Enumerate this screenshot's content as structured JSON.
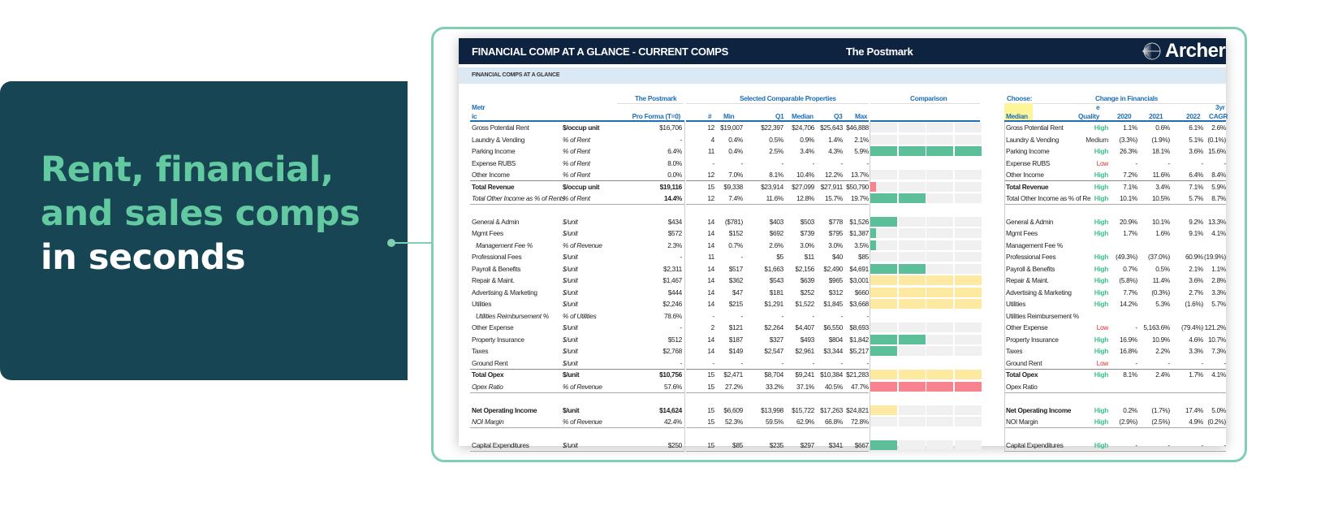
{
  "promo": {
    "line1": "Rent, financial,",
    "line2": "and sales comps",
    "line3": "in seconds"
  },
  "sheet": {
    "title": "FINANCIAL COMP AT A GLANCE - CURRENT COMPS",
    "property": "The Postmark",
    "logo": "Archer",
    "band": "FINANCIAL COMPS AT A GLANCE"
  },
  "colors": {
    "header_bg": "#0d2340",
    "accent": "#1f6fb5",
    "green": "#5bbf9a",
    "yellow": "#fde9a0",
    "red": "#f7838f",
    "quality_high": "#3fbf8c",
    "quality_low": "#e03030",
    "quality_medium": "#333333"
  },
  "left_headers": {
    "group_postmark": "The Postmark",
    "group_comps": "Selected Comparable Properties",
    "group_comparison": "Comparison",
    "metric_a": "Metr",
    "metric_b": "ic",
    "proforma": "Pro Forma (T=0)",
    "n": "#",
    "min": "Min",
    "q1": "Q1",
    "median": "Median",
    "q3": "Q3",
    "max": "Max"
  },
  "right_headers": {
    "choose": "Choose:",
    "group": "Change in Financials",
    "selected": "Median",
    "quality_a": "e",
    "quality_b": "Quality",
    "y2020": "2020",
    "y2021": "2021",
    "y2022": "2022",
    "cagr_a": "3yr",
    "cagr_b": "CAGR"
  },
  "sections": [
    [
      {
        "label": "Gross Potential Rent",
        "unit": "$/occup unit",
        "unit_bold": true,
        "pf": "$16,706",
        "n": "12",
        "min": "$19,007",
        "q1": "$22,397",
        "med": "$24,706",
        "q3": "$25,643",
        "max": "$46,888",
        "bar": {
          "color": "none",
          "level": 0
        },
        "rl": "Gross Potential Rent",
        "q": "High",
        "c20": "1.1%",
        "c21": "0.6%",
        "c22": "6.1%",
        "cagr": "2.6%"
      },
      {
        "label": "Laundry & Vending",
        "unit": "% of Rent",
        "pf": "-",
        "n": "4",
        "min": "0.4%",
        "q1": "0.5%",
        "med": "0.9%",
        "q3": "1.4%",
        "max": "2.1%",
        "bar": {
          "color": "none",
          "level": 0
        },
        "rl": "Laundry & Vending",
        "q": "Medium",
        "c20": "(3.3%)",
        "c21": "(1.9%)",
        "c22": "5.1%",
        "cagr": "(0.1%)"
      },
      {
        "label": "Parking Income",
        "unit": "% of Rent",
        "pf": "6.4%",
        "n": "11",
        "min": "0.4%",
        "q1": "2.5%",
        "med": "3.4%",
        "q3": "4.3%",
        "max": "5.9%",
        "bar": {
          "color": "green",
          "level": 4
        },
        "rl": "Parking Income",
        "q": "High",
        "c20": "26.3%",
        "c21": "18.1%",
        "c22": "3.6%",
        "cagr": "15.6%"
      },
      {
        "label": "Expense RUBS",
        "unit": "% of Rent",
        "pf": "8.0%",
        "n": "-",
        "min": "-",
        "q1": "-",
        "med": "-",
        "q3": "-",
        "max": "-",
        "bar": null,
        "rl": "Expense RUBS",
        "q": "Low",
        "c20": "-",
        "c21": "-",
        "c22": "-",
        "cagr": "-"
      },
      {
        "label": "Other Income",
        "unit": "% of Rent",
        "pf": "0.0%",
        "n": "12",
        "min": "7.0%",
        "q1": "8.1%",
        "med": "10.4%",
        "q3": "12.2%",
        "max": "13.7%",
        "bar": {
          "color": "none",
          "level": 0
        },
        "rl": "Other Income",
        "q": "High",
        "c20": "7.2%",
        "c21": "11.6%",
        "c22": "6.4%",
        "cagr": "8.4%"
      },
      {
        "label": "Total Revenue",
        "unit": "$/occup unit",
        "style": "bold",
        "unit_bold": true,
        "top_line": true,
        "pf": "$19,116",
        "n": "15",
        "min": "$9,338",
        "q1": "$23,914",
        "med": "$27,099",
        "q3": "$27,911",
        "max": "$50,790",
        "bar": {
          "color": "red",
          "level": 0.2
        },
        "rl": "Total Revenue",
        "q": "High",
        "c20": "7.1%",
        "c21": "3.4%",
        "c22": "7.1%",
        "cagr": "5.9%"
      },
      {
        "label": "Total Other Income as % of Rents",
        "unit": "% of Rent",
        "style": "italic",
        "pf_bold": true,
        "pf": "14.4%",
        "n": "12",
        "min": "7.4%",
        "q1": "11.6%",
        "med": "12.8%",
        "q3": "15.7%",
        "max": "19.7%",
        "bar": {
          "color": "green",
          "level": 2
        },
        "rl": "Total Other Income as % of Re",
        "q": "High",
        "c20": "10.1%",
        "c21": "10.5%",
        "c22": "5.7%",
        "cagr": "8.7%"
      }
    ],
    [
      {
        "label": "General & Admin",
        "unit": "$/unit",
        "pf": "$434",
        "n": "14",
        "min": "($781)",
        "q1": "$403",
        "med": "$503",
        "q3": "$778",
        "max": "$1,526",
        "bar": {
          "color": "green",
          "level": 1
        },
        "rl": "General & Admin",
        "q": "High",
        "c20": "20.9%",
        "c21": "10.1%",
        "c22": "9.2%",
        "cagr": "13.3%"
      },
      {
        "label": "Mgmt Fees",
        "unit": "$/unit",
        "pf": "$572",
        "n": "14",
        "min": "$152",
        "q1": "$692",
        "med": "$739",
        "q3": "$795",
        "max": "$1,387",
        "bar": {
          "color": "green",
          "level": 0.2
        },
        "rl": "Mgmt Fees",
        "q": "High",
        "c20": "1.7%",
        "c21": "1.6%",
        "c22": "9.1%",
        "cagr": "4.1%"
      },
      {
        "label": "Management Fee %",
        "unit": "% of Revenue",
        "style": "italic-indent",
        "pf": "2.3%",
        "n": "14",
        "min": "0.7%",
        "q1": "2.6%",
        "med": "3.0%",
        "q3": "3.0%",
        "max": "3.5%",
        "bar": {
          "color": "green",
          "level": 0.2
        },
        "rl": "Management Fee %",
        "q": "",
        "c20": "",
        "c21": "",
        "c22": "",
        "cagr": ""
      },
      {
        "label": "Professional Fees",
        "unit": "$/unit",
        "pf": "-",
        "n": "11",
        "min": "-",
        "q1": "$5",
        "med": "$11",
        "q3": "$40",
        "max": "$85",
        "bar": {
          "color": "none",
          "level": 0
        },
        "rl": "Professional Fees",
        "q": "High",
        "c20": "(49.3%)",
        "c21": "(37.0%)",
        "c22": "60.9%",
        "cagr": "(19.9%)"
      },
      {
        "label": "Payroll & Benefits",
        "unit": "$/unit",
        "pf": "$2,311",
        "n": "14",
        "min": "$517",
        "q1": "$1,663",
        "med": "$2,156",
        "q3": "$2,490",
        "max": "$4,691",
        "bar": {
          "color": "green",
          "level": 2
        },
        "rl": "Payroll & Benefits",
        "q": "High",
        "c20": "0.7%",
        "c21": "0.5%",
        "c22": "2.1%",
        "cagr": "1.1%"
      },
      {
        "label": "Repair & Maint.",
        "unit": "$/unit",
        "pf": "$1,467",
        "n": "14",
        "min": "$362",
        "q1": "$543",
        "med": "$639",
        "q3": "$965",
        "max": "$3,001",
        "bar": {
          "color": "yellow",
          "level": 4
        },
        "rl": "Repair & Maint.",
        "q": "High",
        "c20": "(5.8%)",
        "c21": "11.4%",
        "c22": "3.6%",
        "cagr": "2.8%"
      },
      {
        "label": "Advertising & Marketing",
        "unit": "$/unit",
        "pf": "$444",
        "n": "14",
        "min": "$47",
        "q1": "$181",
        "med": "$252",
        "q3": "$312",
        "max": "$660",
        "bar": {
          "color": "yellow",
          "level": 4
        },
        "rl": "Advertising & Marketing",
        "q": "High",
        "c20": "7.7%",
        "c21": "(0.3%)",
        "c22": "2.7%",
        "cagr": "3.3%"
      },
      {
        "label": "Utilities",
        "unit": "$/unit",
        "pf": "$2,246",
        "n": "14",
        "min": "$215",
        "q1": "$1,291",
        "med": "$1,522",
        "q3": "$1,845",
        "max": "$3,668",
        "bar": {
          "color": "yellow",
          "level": 4
        },
        "rl": "Utilities",
        "q": "High",
        "c20": "14.2%",
        "c21": "5.3%",
        "c22": "(1.6%)",
        "cagr": "5.7%"
      },
      {
        "label": "Utilities Reimbursement %",
        "unit": "% of Utilities",
        "style": "italic-indent",
        "pf": "78.6%",
        "n": "-",
        "min": "-",
        "q1": "-",
        "med": "-",
        "q3": "-",
        "max": "-",
        "bar": null,
        "rl": "Utilities Reimbursement %",
        "q": "",
        "c20": "",
        "c21": "",
        "c22": "",
        "cagr": ""
      },
      {
        "label": "Other Expense",
        "unit": "$/unit",
        "pf": "-",
        "n": "2",
        "min": "$121",
        "q1": "$2,264",
        "med": "$4,407",
        "q3": "$6,550",
        "max": "$8,693",
        "bar": {
          "color": "none",
          "level": 0
        },
        "rl": "Other Expense",
        "q": "Low",
        "c20": "-",
        "c21": "5,163.6%",
        "c22": "(79.4%)",
        "cagr": "121.2%"
      },
      {
        "label": "Property Insurance",
        "unit": "$/unit",
        "pf": "$512",
        "n": "14",
        "min": "$187",
        "q1": "$327",
        "med": "$493",
        "q3": "$804",
        "max": "$1,842",
        "bar": {
          "color": "green",
          "level": 2
        },
        "rl": "Property Insurance",
        "q": "High",
        "c20": "16.9%",
        "c21": "10.9%",
        "c22": "4.6%",
        "cagr": "10.7%"
      },
      {
        "label": "Taxes",
        "unit": "$/unit",
        "pf": "$2,768",
        "n": "14",
        "min": "$149",
        "q1": "$2,547",
        "med": "$2,961",
        "q3": "$3,344",
        "max": "$5,217",
        "bar": {
          "color": "green",
          "level": 1
        },
        "rl": "Taxes",
        "q": "High",
        "c20": "16.8%",
        "c21": "2.2%",
        "c22": "3.3%",
        "cagr": "7.3%"
      },
      {
        "label": "Ground Rent",
        "unit": "$/unit",
        "pf": "-",
        "n": "-",
        "min": "-",
        "q1": "-",
        "med": "-",
        "q3": "-",
        "max": "-",
        "bar": null,
        "rl": "Ground Rent",
        "q": "Low",
        "c20": "-",
        "c21": "-",
        "c22": "-",
        "cagr": "-"
      },
      {
        "label": "Total Opex",
        "unit": "$/unit",
        "style": "bold",
        "unit_bold": true,
        "top_line": true,
        "pf": "$10,756",
        "n": "15",
        "min": "$2,471",
        "q1": "$8,704",
        "med": "$9,241",
        "q3": "$10,384",
        "max": "$21,283",
        "bar": {
          "color": "yellow",
          "level": 4
        },
        "rl": "Total Opex",
        "q": "High",
        "c20": "8.1%",
        "c21": "2.4%",
        "c22": "1.7%",
        "cagr": "4.1%"
      },
      {
        "label": "Opex Ratio",
        "unit": "% of Revenue",
        "style": "italic",
        "pf": "57.6%",
        "n": "15",
        "min": "27.2%",
        "q1": "33.2%",
        "med": "37.1%",
        "q3": "40.5%",
        "max": "47.7%",
        "bar": {
          "color": "red",
          "level": 4
        },
        "rl": "Opex Ratio",
        "q": "",
        "c20": "",
        "c21": "",
        "c22": "",
        "cagr": ""
      }
    ],
    [
      {
        "label": "Net Operating Income",
        "unit": "$/unit",
        "style": "bold",
        "unit_bold": true,
        "pf": "$14,624",
        "n": "15",
        "min": "$6,609",
        "q1": "$13,998",
        "med": "$15,722",
        "q3": "$17,263",
        "max": "$24,821",
        "bar": {
          "color": "yellow",
          "level": 1
        },
        "rl": "Net Operating Income",
        "q": "High",
        "c20": "0.2%",
        "c21": "(1.7%)",
        "c22": "17.4%",
        "cagr": "5.0%"
      },
      {
        "label": "NOI Margin",
        "unit": "% of Revenue",
        "style": "italic",
        "pf": "42.4%",
        "n": "15",
        "min": "52.3%",
        "q1": "59.5%",
        "med": "62.9%",
        "q3": "66.8%",
        "max": "72.8%",
        "bar": {
          "color": "none",
          "level": 0
        },
        "rl": "NOI Margin",
        "q": "High",
        "c20": "(2.9%)",
        "c21": "(2.5%)",
        "c22": "4.9%",
        "cagr": "(0.2%)"
      }
    ],
    [
      {
        "label": "Capital Expenditures",
        "unit": "$/unit",
        "pf": "$250",
        "n": "15",
        "min": "$85",
        "q1": "$235",
        "med": "$297",
        "q3": "$341",
        "max": "$667",
        "bar": {
          "color": "green",
          "level": 1
        },
        "rl": "Capital Expenditures",
        "q": "High",
        "c20": "-",
        "c21": "-",
        "c22": "-",
        "cagr": "-"
      }
    ]
  ]
}
